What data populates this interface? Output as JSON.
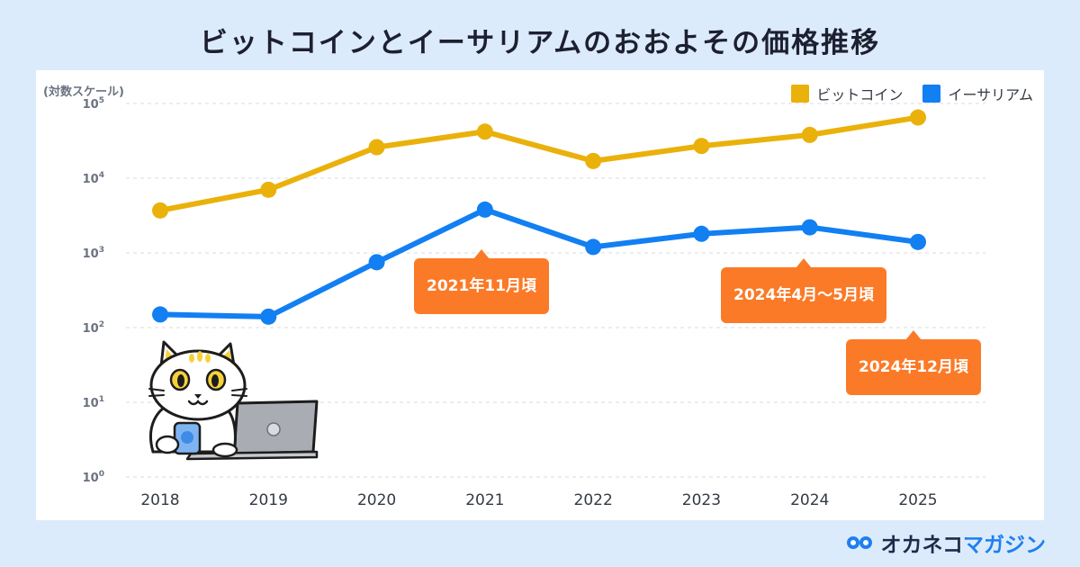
{
  "title": "ビットコインとイーサリアムのおおよその価格推移",
  "chart_data": {
    "type": "line",
    "scale_note": "(対数スケール)",
    "y_scale": "log",
    "ylim": [
      1,
      100000
    ],
    "y_ticks": [
      {
        "value": 1,
        "base": "10",
        "exp": "0"
      },
      {
        "value": 10,
        "base": "10",
        "exp": "1"
      },
      {
        "value": 100,
        "base": "10",
        "exp": "2"
      },
      {
        "value": 1000,
        "base": "10",
        "exp": "3"
      },
      {
        "value": 10000,
        "base": "10",
        "exp": "4"
      },
      {
        "value": 100000,
        "base": "10",
        "exp": "5"
      }
    ],
    "x": [
      "2018",
      "2019",
      "2020",
      "2021",
      "2022",
      "2023",
      "2024",
      "2025"
    ],
    "grid": "horizontal-dashed",
    "legend_position": "top-right",
    "series": [
      {
        "name": "ビットコイン",
        "color": "#eab10b",
        "values": [
          3700,
          7000,
          26000,
          42000,
          17000,
          27000,
          38000,
          65000
        ]
      },
      {
        "name": "イーサリアム",
        "color": "#127ff2",
        "values": [
          150,
          140,
          750,
          3800,
          1200,
          1800,
          2200,
          1400
        ]
      }
    ],
    "annotations": [
      {
        "text": "2021年11月頃",
        "x": "2021"
      },
      {
        "text": "2024年4月〜5月頃",
        "x": "2024"
      },
      {
        "text": "2024年12月頃",
        "x": "2025"
      }
    ]
  },
  "brand": {
    "part1": "オカネコ",
    "part2": "マガジン"
  },
  "colors": {
    "background": "#dcebfb",
    "callout": "#fb7a27",
    "brand_blue": "#1e7ff0"
  }
}
